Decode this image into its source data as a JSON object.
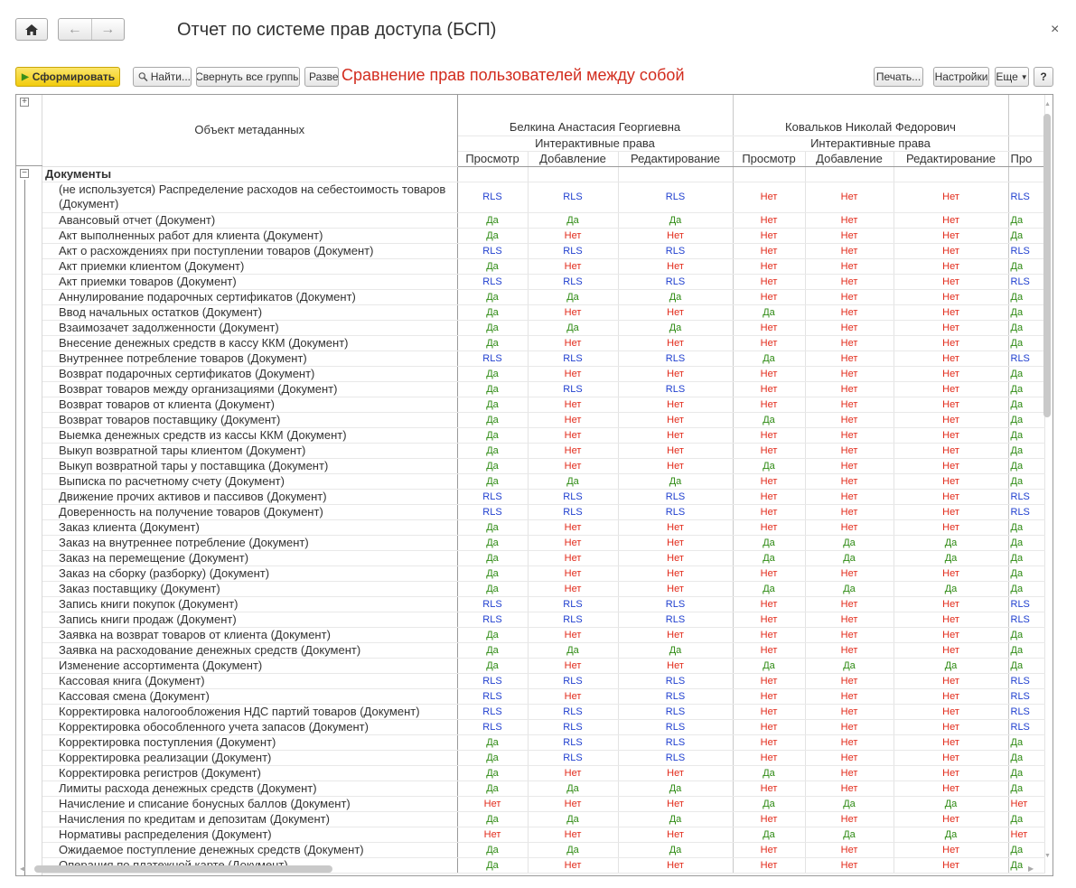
{
  "window": {
    "title": "Отчет по системе прав доступа (БСП)",
    "close_glyph": "×"
  },
  "nav": {
    "back_glyph": "←",
    "forward_glyph": "→",
    "home_icon": "home-icon"
  },
  "toolbar": {
    "generate_label": "Сформировать",
    "find_label": "Найти...",
    "collapse_label": "Свернуть все группы",
    "expand_label": "Разве",
    "print_label": "Печать...",
    "settings_label": "Настройки",
    "more_label": "Еще",
    "help_label": "?"
  },
  "annotation": "Сравнение прав пользователей между собой",
  "colors": {
    "rls": "#1f3fcf",
    "yes": "#2d8a12",
    "no": "#e22a1a",
    "generate": "#f5d320"
  },
  "report": {
    "object_header": "Объект метаданных",
    "users": [
      {
        "name": "Белкина Анастасия Георгиевна",
        "group": "Интерактивные права"
      },
      {
        "name": "Ковальков Николай Федорович",
        "group": "Интерактивные права"
      }
    ],
    "columns": [
      "Просмотр",
      "Добавление",
      "Редактирование",
      "Просмотр",
      "Добавление",
      "Редактирование",
      "Про"
    ],
    "group_label": "Документы",
    "rows": [
      {
        "name": "(не используется) Распределение расходов на себестоимость товаров (Документ)",
        "v": [
          "RLS",
          "RLS",
          "RLS",
          "Нет",
          "Нет",
          "Нет",
          "RLS"
        ]
      },
      {
        "name": "Авансовый отчет (Документ)",
        "v": [
          "Да",
          "Да",
          "Да",
          "Нет",
          "Нет",
          "Нет",
          "Да"
        ]
      },
      {
        "name": "Акт выполненных работ для клиента (Документ)",
        "v": [
          "Да",
          "Нет",
          "Нет",
          "Нет",
          "Нет",
          "Нет",
          "Да"
        ]
      },
      {
        "name": "Акт о расхождениях при поступлении товаров (Документ)",
        "v": [
          "RLS",
          "RLS",
          "RLS",
          "Нет",
          "Нет",
          "Нет",
          "RLS"
        ]
      },
      {
        "name": "Акт приемки клиентом (Документ)",
        "v": [
          "Да",
          "Нет",
          "Нет",
          "Нет",
          "Нет",
          "Нет",
          "Да"
        ]
      },
      {
        "name": "Акт приемки товаров (Документ)",
        "v": [
          "RLS",
          "RLS",
          "RLS",
          "Нет",
          "Нет",
          "Нет",
          "RLS"
        ]
      },
      {
        "name": "Аннулирование подарочных сертификатов (Документ)",
        "v": [
          "Да",
          "Да",
          "Да",
          "Нет",
          "Нет",
          "Нет",
          "Да"
        ]
      },
      {
        "name": "Ввод начальных остатков (Документ)",
        "v": [
          "Да",
          "Нет",
          "Нет",
          "Да",
          "Нет",
          "Нет",
          "Да"
        ]
      },
      {
        "name": "Взаимозачет задолженности (Документ)",
        "v": [
          "Да",
          "Да",
          "Да",
          "Нет",
          "Нет",
          "Нет",
          "Да"
        ]
      },
      {
        "name": "Внесение денежных средств в кассу ККМ (Документ)",
        "v": [
          "Да",
          "Нет",
          "Нет",
          "Нет",
          "Нет",
          "Нет",
          "Да"
        ]
      },
      {
        "name": "Внутреннее потребление товаров (Документ)",
        "v": [
          "RLS",
          "RLS",
          "RLS",
          "Да",
          "Нет",
          "Нет",
          "RLS"
        ]
      },
      {
        "name": "Возврат подарочных сертификатов (Документ)",
        "v": [
          "Да",
          "Нет",
          "Нет",
          "Нет",
          "Нет",
          "Нет",
          "Да"
        ]
      },
      {
        "name": "Возврат товаров между организациями (Документ)",
        "v": [
          "Да",
          "RLS",
          "RLS",
          "Нет",
          "Нет",
          "Нет",
          "Да"
        ]
      },
      {
        "name": "Возврат товаров от клиента (Документ)",
        "v": [
          "Да",
          "Нет",
          "Нет",
          "Нет",
          "Нет",
          "Нет",
          "Да"
        ]
      },
      {
        "name": "Возврат товаров поставщику (Документ)",
        "v": [
          "Да",
          "Нет",
          "Нет",
          "Да",
          "Нет",
          "Нет",
          "Да"
        ]
      },
      {
        "name": "Выемка денежных средств из кассы ККМ (Документ)",
        "v": [
          "Да",
          "Нет",
          "Нет",
          "Нет",
          "Нет",
          "Нет",
          "Да"
        ]
      },
      {
        "name": "Выкуп возвратной тары клиентом (Документ)",
        "v": [
          "Да",
          "Нет",
          "Нет",
          "Нет",
          "Нет",
          "Нет",
          "Да"
        ]
      },
      {
        "name": "Выкуп возвратной тары у поставщика (Документ)",
        "v": [
          "Да",
          "Нет",
          "Нет",
          "Да",
          "Нет",
          "Нет",
          "Да"
        ]
      },
      {
        "name": "Выписка по расчетному счету (Документ)",
        "v": [
          "Да",
          "Да",
          "Да",
          "Нет",
          "Нет",
          "Нет",
          "Да"
        ]
      },
      {
        "name": "Движение прочих активов и пассивов (Документ)",
        "v": [
          "RLS",
          "RLS",
          "RLS",
          "Нет",
          "Нет",
          "Нет",
          "RLS"
        ]
      },
      {
        "name": "Доверенность на получение товаров (Документ)",
        "v": [
          "RLS",
          "RLS",
          "RLS",
          "Нет",
          "Нет",
          "Нет",
          "RLS"
        ]
      },
      {
        "name": "Заказ клиента (Документ)",
        "v": [
          "Да",
          "Нет",
          "Нет",
          "Нет",
          "Нет",
          "Нет",
          "Да"
        ]
      },
      {
        "name": "Заказ на внутреннее потребление (Документ)",
        "v": [
          "Да",
          "Нет",
          "Нет",
          "Да",
          "Да",
          "Да",
          "Да"
        ]
      },
      {
        "name": "Заказ на перемещение (Документ)",
        "v": [
          "Да",
          "Нет",
          "Нет",
          "Да",
          "Да",
          "Да",
          "Да"
        ]
      },
      {
        "name": "Заказ на сборку (разборку) (Документ)",
        "v": [
          "Да",
          "Нет",
          "Нет",
          "Нет",
          "Нет",
          "Нет",
          "Да"
        ]
      },
      {
        "name": "Заказ поставщику (Документ)",
        "v": [
          "Да",
          "Нет",
          "Нет",
          "Да",
          "Да",
          "Да",
          "Да"
        ]
      },
      {
        "name": "Запись книги покупок (Документ)",
        "v": [
          "RLS",
          "RLS",
          "RLS",
          "Нет",
          "Нет",
          "Нет",
          "RLS"
        ]
      },
      {
        "name": "Запись книги продаж (Документ)",
        "v": [
          "RLS",
          "RLS",
          "RLS",
          "Нет",
          "Нет",
          "Нет",
          "RLS"
        ]
      },
      {
        "name": "Заявка на возврат товаров от клиента (Документ)",
        "v": [
          "Да",
          "Нет",
          "Нет",
          "Нет",
          "Нет",
          "Нет",
          "Да"
        ]
      },
      {
        "name": "Заявка на расходование денежных средств (Документ)",
        "v": [
          "Да",
          "Да",
          "Да",
          "Нет",
          "Нет",
          "Нет",
          "Да"
        ]
      },
      {
        "name": "Изменение ассортимента (Документ)",
        "v": [
          "Да",
          "Нет",
          "Нет",
          "Да",
          "Да",
          "Да",
          "Да"
        ]
      },
      {
        "name": "Кассовая книга (Документ)",
        "v": [
          "RLS",
          "RLS",
          "RLS",
          "Нет",
          "Нет",
          "Нет",
          "RLS"
        ]
      },
      {
        "name": "Кассовая смена (Документ)",
        "v": [
          "RLS",
          "Нет",
          "RLS",
          "Нет",
          "Нет",
          "Нет",
          "RLS"
        ]
      },
      {
        "name": "Корректировка налогообложения НДС партий товаров (Документ)",
        "v": [
          "RLS",
          "RLS",
          "RLS",
          "Нет",
          "Нет",
          "Нет",
          "RLS"
        ]
      },
      {
        "name": "Корректировка обособленного учета запасов (Документ)",
        "v": [
          "RLS",
          "RLS",
          "RLS",
          "Нет",
          "Нет",
          "Нет",
          "RLS"
        ]
      },
      {
        "name": "Корректировка поступления (Документ)",
        "v": [
          "Да",
          "RLS",
          "RLS",
          "Нет",
          "Нет",
          "Нет",
          "Да"
        ]
      },
      {
        "name": "Корректировка реализации (Документ)",
        "v": [
          "Да",
          "RLS",
          "RLS",
          "Нет",
          "Нет",
          "Нет",
          "Да"
        ]
      },
      {
        "name": "Корректировка регистров (Документ)",
        "v": [
          "Да",
          "Нет",
          "Нет",
          "Да",
          "Нет",
          "Нет",
          "Да"
        ]
      },
      {
        "name": "Лимиты расхода денежных средств (Документ)",
        "v": [
          "Да",
          "Да",
          "Да",
          "Нет",
          "Нет",
          "Нет",
          "Да"
        ]
      },
      {
        "name": "Начисление и списание бонусных баллов (Документ)",
        "v": [
          "Нет",
          "Нет",
          "Нет",
          "Да",
          "Да",
          "Да",
          "Нет"
        ]
      },
      {
        "name": "Начисления по кредитам и депозитам (Документ)",
        "v": [
          "Да",
          "Да",
          "Да",
          "Нет",
          "Нет",
          "Нет",
          "Да"
        ]
      },
      {
        "name": "Нормативы распределения (Документ)",
        "v": [
          "Нет",
          "Нет",
          "Нет",
          "Да",
          "Да",
          "Да",
          "Нет"
        ]
      },
      {
        "name": "Ожидаемое поступление денежных средств (Документ)",
        "v": [
          "Да",
          "Да",
          "Да",
          "Нет",
          "Нет",
          "Нет",
          "Да"
        ]
      },
      {
        "name": "Операция по платежной карте (Документ)",
        "v": [
          "Да",
          "Нет",
          "Нет",
          "Нет",
          "Нет",
          "Нет",
          "Да"
        ]
      }
    ]
  }
}
